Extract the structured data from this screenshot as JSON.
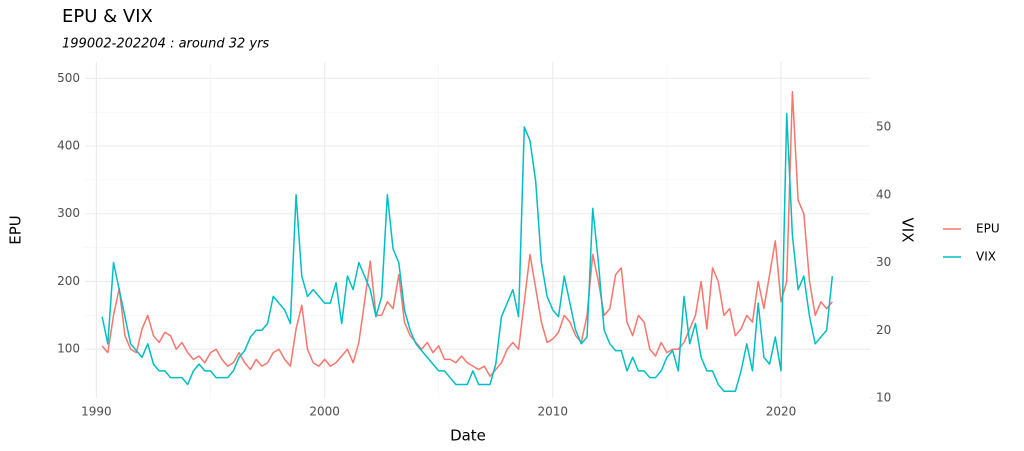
{
  "chart_data": {
    "type": "line",
    "title": "EPU & VIX",
    "subtitle": "199002-202204 : around 32 yrs",
    "xlabel": "Date",
    "ylabel": "EPU",
    "y2label": "VIX",
    "x": [
      1990.25,
      1990.5,
      1990.75,
      1991,
      1991.25,
      1991.5,
      1991.75,
      1992,
      1992.25,
      1992.5,
      1992.75,
      1993,
      1993.25,
      1993.5,
      1993.75,
      1994,
      1994.25,
      1994.5,
      1994.75,
      1995,
      1995.25,
      1995.5,
      1995.75,
      1996,
      1996.25,
      1996.5,
      1996.75,
      1997,
      1997.25,
      1997.5,
      1997.75,
      1998,
      1998.25,
      1998.5,
      1998.75,
      1999,
      1999.25,
      1999.5,
      1999.75,
      2000,
      2000.25,
      2000.5,
      2000.75,
      2001,
      2001.25,
      2001.5,
      2001.75,
      2002,
      2002.25,
      2002.5,
      2002.75,
      2003,
      2003.25,
      2003.5,
      2003.75,
      2004,
      2004.25,
      2004.5,
      2004.75,
      2005,
      2005.25,
      2005.5,
      2005.75,
      2006,
      2006.25,
      2006.5,
      2006.75,
      2007,
      2007.25,
      2007.5,
      2007.75,
      2008,
      2008.25,
      2008.5,
      2008.75,
      2009,
      2009.25,
      2009.5,
      2009.75,
      2010,
      2010.25,
      2010.5,
      2010.75,
      2011,
      2011.25,
      2011.5,
      2011.75,
      2012,
      2012.25,
      2012.5,
      2012.75,
      2013,
      2013.25,
      2013.5,
      2013.75,
      2014,
      2014.25,
      2014.5,
      2014.75,
      2015,
      2015.25,
      2015.5,
      2015.75,
      2016,
      2016.25,
      2016.5,
      2016.75,
      2017,
      2017.25,
      2017.5,
      2017.75,
      2018,
      2018.25,
      2018.5,
      2018.75,
      2019,
      2019.25,
      2019.5,
      2019.75,
      2020,
      2020.25,
      2020.5,
      2020.75,
      2021,
      2021.25,
      2021.5,
      2021.75,
      2022,
      2022.25
    ],
    "series": [
      {
        "name": "EPU",
        "color": "#F8766D",
        "axis": "y",
        "values": [
          105,
          95,
          150,
          190,
          120,
          100,
          95,
          130,
          150,
          120,
          110,
          125,
          120,
          100,
          110,
          95,
          85,
          90,
          80,
          95,
          100,
          85,
          75,
          80,
          95,
          80,
          70,
          85,
          75,
          80,
          95,
          100,
          85,
          75,
          130,
          165,
          100,
          80,
          75,
          85,
          75,
          80,
          90,
          100,
          80,
          110,
          170,
          230,
          150,
          150,
          170,
          160,
          210,
          140,
          120,
          110,
          100,
          110,
          95,
          105,
          85,
          85,
          80,
          90,
          80,
          75,
          70,
          75,
          60,
          70,
          80,
          100,
          110,
          100,
          170,
          240,
          190,
          140,
          110,
          115,
          125,
          150,
          140,
          120,
          110,
          150,
          240,
          200,
          150,
          160,
          210,
          220,
          140,
          120,
          150,
          140,
          100,
          90,
          110,
          95,
          100,
          100,
          110,
          130,
          150,
          200,
          130,
          220,
          200,
          150,
          160,
          120,
          130,
          150,
          140,
          200,
          160,
          210,
          260,
          170,
          200,
          480,
          320,
          300,
          200,
          150,
          170,
          160,
          170
        ]
      },
      {
        "name": "VIX",
        "color": "#00BFC4",
        "axis": "y2",
        "values": [
          22,
          18,
          30,
          26,
          22,
          18,
          17,
          16,
          18,
          15,
          14,
          14,
          13,
          13,
          13,
          12,
          14,
          15,
          14,
          14,
          13,
          13,
          13,
          14,
          16,
          17,
          19,
          20,
          20,
          21,
          25,
          24,
          23,
          21,
          40,
          28,
          25,
          26,
          25,
          24,
          24,
          27,
          21,
          28,
          26,
          30,
          28,
          26,
          22,
          25,
          40,
          32,
          30,
          23,
          20,
          18,
          17,
          16,
          15,
          14,
          14,
          13,
          12,
          12,
          12,
          14,
          12,
          12,
          12,
          15,
          22,
          24,
          26,
          22,
          50,
          48,
          42,
          30,
          25,
          23,
          22,
          28,
          24,
          20,
          18,
          19,
          38,
          30,
          20,
          18,
          17,
          17,
          14,
          16,
          14,
          14,
          13,
          13,
          14,
          16,
          17,
          14,
          25,
          18,
          21,
          16,
          14,
          14,
          12,
          11,
          11,
          11,
          14,
          18,
          14,
          24,
          16,
          15,
          19,
          14,
          52,
          34,
          26,
          28,
          22,
          18,
          19,
          20,
          28
        ]
      }
    ],
    "xlim": [
      1989.5,
      2023.9
    ],
    "xticks": [
      1990,
      2000,
      2010,
      2020
    ],
    "ylim": [
      28,
      524
    ],
    "yticks": [
      100,
      200,
      300,
      400,
      500
    ],
    "y2lim": [
      10,
      59.6
    ],
    "y2ticks": [
      10,
      20,
      30,
      40,
      50
    ],
    "grid": true
  }
}
